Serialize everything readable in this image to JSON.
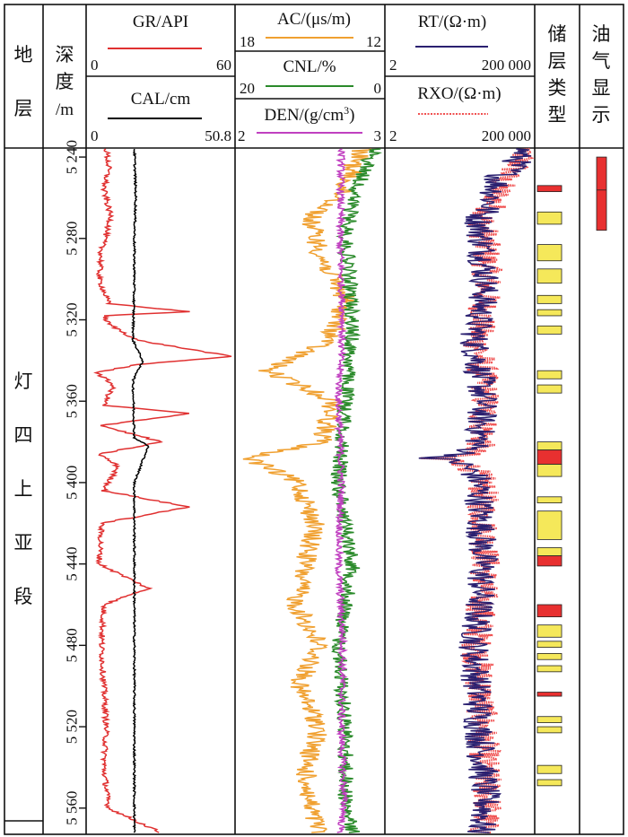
{
  "header": {
    "formation_title": [
      "地",
      "层"
    ],
    "depth_title": [
      "深",
      "度",
      "/m"
    ],
    "reservoir_title": [
      "储",
      "层",
      "类",
      "型"
    ],
    "oil_title": [
      "油",
      "气",
      "显",
      "示"
    ]
  },
  "tracks": {
    "gr": {
      "label": "GR/API",
      "min": "0",
      "max": "60",
      "color": "#e03030"
    },
    "cal": {
      "label": "CAL/cm",
      "min": "0",
      "max": "50.8",
      "color": "#000000"
    },
    "ac": {
      "label": "AC/(μs/m)",
      "min": "18",
      "max": "12",
      "color": "#f0a030"
    },
    "cnl": {
      "label": "CNL/%",
      "min": "20",
      "max": "0",
      "color": "#2a8a2a"
    },
    "den": {
      "label": "DEN/(g/cm",
      "label_sup": "3",
      "label_end": ")",
      "min": "2",
      "max": "3",
      "color": "#c040c0"
    },
    "rt": {
      "label": "RT/(Ω·m)",
      "min": "2",
      "max": "200 000",
      "color": "#2a2070"
    },
    "rxo": {
      "label": "RXO/(Ω·m)",
      "min": "2",
      "max": "200 000",
      "color": "#f05050"
    }
  },
  "formation": {
    "chars": [
      "灯",
      "四",
      "上",
      "亚",
      "段"
    ]
  },
  "depth_ticks": [
    "5 240",
    "5 280",
    "5 320",
    "5 360",
    "5 400",
    "5 440",
    "5 480",
    "5 520",
    "5 560"
  ],
  "chart_data": {
    "type": "well_log",
    "depth_range": [
      5236,
      5572
    ],
    "depth_unit": "m",
    "depth_ticks": [
      5240,
      5280,
      5320,
      5360,
      5400,
      5440,
      5480,
      5520,
      5560
    ],
    "curves": [
      {
        "name": "GR",
        "unit": "API",
        "range": [
          0,
          60
        ],
        "depth": [
          5236,
          5245,
          5256,
          5270,
          5285,
          5300,
          5312,
          5316,
          5318,
          5322,
          5330,
          5338,
          5342,
          5346,
          5352,
          5362,
          5366,
          5372,
          5380,
          5386,
          5392,
          5404,
          5412,
          5420,
          5440,
          5452,
          5460,
          5480,
          5500,
          5520,
          5540,
          5560,
          5572
        ],
        "values": [
          7,
          8,
          6,
          9,
          5,
          4,
          8,
          42,
          6,
          8,
          20,
          60,
          20,
          3,
          10,
          6,
          42,
          5,
          30,
          4,
          12,
          6,
          42,
          5,
          4,
          25,
          6,
          5,
          6,
          7,
          6,
          8,
          30
        ]
      },
      {
        "name": "CAL",
        "unit": "cm",
        "range": [
          0,
          50.8
        ],
        "depth": [
          5236,
          5260,
          5280,
          5300,
          5330,
          5340,
          5350,
          5378,
          5382,
          5400,
          5440,
          5480,
          5520,
          5572
        ],
        "values": [
          16,
          16.5,
          16,
          16,
          15.5,
          19,
          15.5,
          16,
          21,
          16,
          16,
          16,
          16,
          16
        ]
      },
      {
        "name": "AC",
        "unit": "μs/m",
        "range": [
          18,
          12
        ],
        "depth": [
          5236,
          5260,
          5270,
          5290,
          5310,
          5330,
          5345,
          5360,
          5380,
          5388,
          5400,
          5420,
          5440,
          5460,
          5480,
          5500,
          5520,
          5540,
          5560,
          5572
        ],
        "values": [
          12.8,
          13.8,
          15,
          14.5,
          13.5,
          14.2,
          16.8,
          14,
          14.5,
          17.6,
          15.5,
          14.8,
          15.2,
          15.6,
          14.6,
          15.5,
          14.6,
          15.2,
          15,
          14.6
        ]
      },
      {
        "name": "CNL",
        "unit": "%",
        "range": [
          20,
          0
        ],
        "depth": [
          5236,
          5260,
          5280,
          5320,
          5360,
          5400,
          5440,
          5480,
          5520,
          5560,
          5572
        ],
        "values": [
          1,
          4,
          5,
          4,
          5,
          6,
          4,
          6,
          5,
          5,
          4
        ]
      },
      {
        "name": "DEN",
        "unit": "g/cm3",
        "range": [
          2,
          3
        ],
        "depth": [
          5236,
          5280,
          5320,
          5360,
          5400,
          5440,
          5480,
          5520,
          5560,
          5572
        ],
        "values": [
          2.72,
          2.71,
          2.73,
          2.7,
          2.72,
          2.7,
          2.73,
          2.72,
          2.74,
          2.71
        ]
      },
      {
        "name": "RT",
        "unit": "Ω·m",
        "range": [
          2,
          200000
        ],
        "scale": "log",
        "depth": [
          5236,
          5250,
          5270,
          5300,
          5330,
          5360,
          5380,
          5388,
          5400,
          5440,
          5480,
          5520,
          5560,
          5572
        ],
        "values": [
          100000,
          15000,
          3000,
          5000,
          2000,
          4000,
          3000,
          20,
          3000,
          4000,
          2000,
          3000,
          5000,
          3000
        ]
      },
      {
        "name": "RXO",
        "unit": "Ω·m",
        "range": [
          2,
          200000
        ],
        "scale": "log",
        "depth": [
          5236,
          5250,
          5270,
          5300,
          5330,
          5360,
          5380,
          5388,
          5400,
          5440,
          5480,
          5520,
          5560,
          5572
        ],
        "values": [
          120000,
          20000,
          4000,
          6000,
          2500,
          5000,
          4000,
          25,
          4000,
          5000,
          2500,
          4000,
          6000,
          4000
        ]
      }
    ],
    "reservoir_types": [
      {
        "top": 5254,
        "bottom": 5257,
        "class": "I"
      },
      {
        "top": 5267,
        "bottom": 5273,
        "class": "II"
      },
      {
        "top": 5283,
        "bottom": 5291,
        "class": "II"
      },
      {
        "top": 5295,
        "bottom": 5302,
        "class": "II"
      },
      {
        "top": 5308,
        "bottom": 5312,
        "class": "II"
      },
      {
        "top": 5315,
        "bottom": 5318,
        "class": "II"
      },
      {
        "top": 5323,
        "bottom": 5327,
        "class": "II"
      },
      {
        "top": 5345,
        "bottom": 5349,
        "class": "II"
      },
      {
        "top": 5352,
        "bottom": 5356,
        "class": "II"
      },
      {
        "top": 5380,
        "bottom": 5384,
        "class": "II"
      },
      {
        "top": 5384,
        "bottom": 5391,
        "class": "I"
      },
      {
        "top": 5391,
        "bottom": 5397,
        "class": "II"
      },
      {
        "top": 5407,
        "bottom": 5410,
        "class": "II"
      },
      {
        "top": 5414,
        "bottom": 5428,
        "class": "II"
      },
      {
        "top": 5432,
        "bottom": 5436,
        "class": "II"
      },
      {
        "top": 5436,
        "bottom": 5441,
        "class": "I"
      },
      {
        "top": 5460,
        "bottom": 5466,
        "class": "I"
      },
      {
        "top": 5470,
        "bottom": 5476,
        "class": "II"
      },
      {
        "top": 5478,
        "bottom": 5481,
        "class": "II"
      },
      {
        "top": 5484,
        "bottom": 5487,
        "class": "II"
      },
      {
        "top": 5490,
        "bottom": 5493,
        "class": "II"
      },
      {
        "top": 5503,
        "bottom": 5505,
        "class": "I"
      },
      {
        "top": 5515,
        "bottom": 5518,
        "class": "II"
      },
      {
        "top": 5520,
        "bottom": 5523,
        "class": "II"
      },
      {
        "top": 5539,
        "bottom": 5543,
        "class": "II"
      },
      {
        "top": 5546,
        "bottom": 5549,
        "class": "II"
      }
    ],
    "oil_show": [
      {
        "top": 5240,
        "bottom": 5276
      }
    ],
    "colors": {
      "class_I": "#e83030",
      "class_II": "#f5e85a",
      "oil_show": "#e83030"
    }
  }
}
